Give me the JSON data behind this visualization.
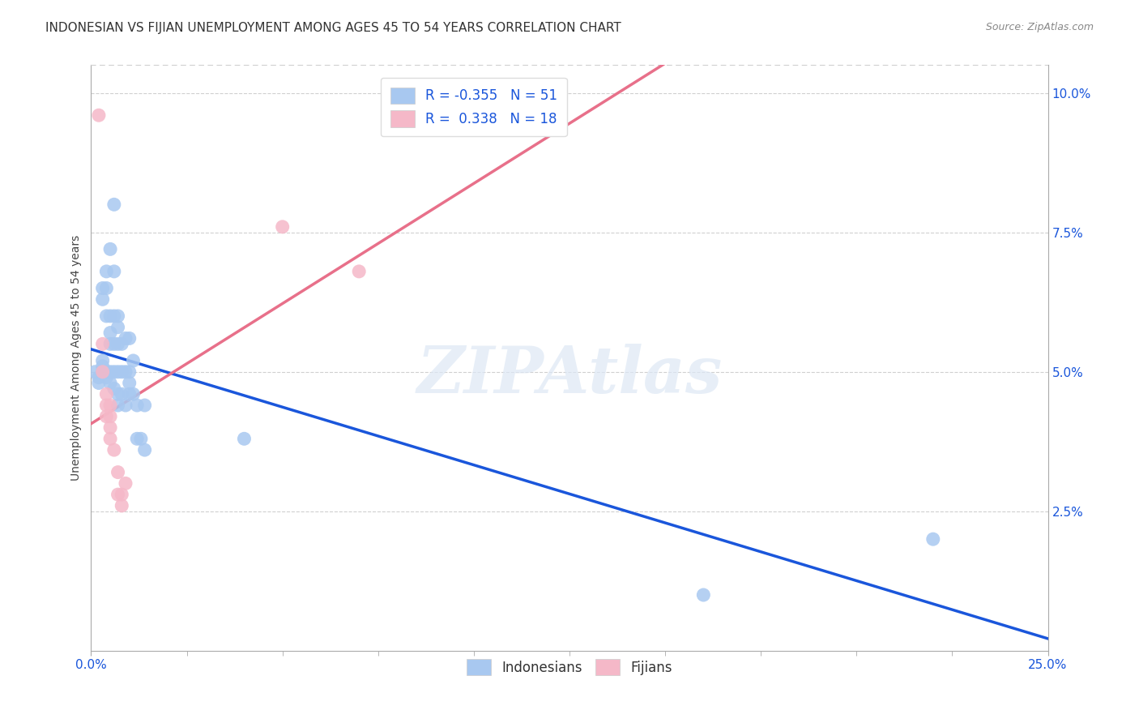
{
  "title": "INDONESIAN VS FIJIAN UNEMPLOYMENT AMONG AGES 45 TO 54 YEARS CORRELATION CHART",
  "source": "Source: ZipAtlas.com",
  "ylabel": "Unemployment Among Ages 45 to 54 years",
  "xlim": [
    0.0,
    0.25
  ],
  "ylim": [
    0.0,
    0.105
  ],
  "ytick_labels": [
    "2.5%",
    "5.0%",
    "7.5%",
    "10.0%"
  ],
  "ytick_vals": [
    0.025,
    0.05,
    0.075,
    0.1
  ],
  "indonesian_color": "#a8c8f0",
  "fijian_color": "#f5b8c8",
  "indonesian_line_color": "#1a56db",
  "fijian_line_color": "#e8708a",
  "dashed_line_color": "#cccccc",
  "r_indonesian": -0.355,
  "n_indonesian": 51,
  "r_fijian": 0.338,
  "n_fijian": 18,
  "indonesian_points": [
    [
      0.001,
      0.05
    ],
    [
      0.002,
      0.049
    ],
    [
      0.002,
      0.048
    ],
    [
      0.003,
      0.052
    ],
    [
      0.003,
      0.051
    ],
    [
      0.003,
      0.05
    ],
    [
      0.003,
      0.065
    ],
    [
      0.003,
      0.063
    ],
    [
      0.004,
      0.05
    ],
    [
      0.004,
      0.049
    ],
    [
      0.004,
      0.068
    ],
    [
      0.004,
      0.065
    ],
    [
      0.004,
      0.06
    ],
    [
      0.005,
      0.072
    ],
    [
      0.005,
      0.06
    ],
    [
      0.005,
      0.057
    ],
    [
      0.005,
      0.055
    ],
    [
      0.005,
      0.05
    ],
    [
      0.005,
      0.048
    ],
    [
      0.006,
      0.08
    ],
    [
      0.006,
      0.068
    ],
    [
      0.006,
      0.06
    ],
    [
      0.006,
      0.055
    ],
    [
      0.006,
      0.05
    ],
    [
      0.006,
      0.047
    ],
    [
      0.007,
      0.06
    ],
    [
      0.007,
      0.058
    ],
    [
      0.007,
      0.055
    ],
    [
      0.007,
      0.05
    ],
    [
      0.007,
      0.046
    ],
    [
      0.007,
      0.044
    ],
    [
      0.008,
      0.055
    ],
    [
      0.008,
      0.05
    ],
    [
      0.008,
      0.046
    ],
    [
      0.009,
      0.056
    ],
    [
      0.009,
      0.05
    ],
    [
      0.009,
      0.044
    ],
    [
      0.01,
      0.056
    ],
    [
      0.01,
      0.05
    ],
    [
      0.01,
      0.048
    ],
    [
      0.01,
      0.046
    ],
    [
      0.011,
      0.052
    ],
    [
      0.011,
      0.046
    ],
    [
      0.012,
      0.044
    ],
    [
      0.012,
      0.038
    ],
    [
      0.013,
      0.038
    ],
    [
      0.014,
      0.044
    ],
    [
      0.014,
      0.036
    ],
    [
      0.04,
      0.038
    ],
    [
      0.16,
      0.01
    ],
    [
      0.22,
      0.02
    ]
  ],
  "fijian_points": [
    [
      0.002,
      0.096
    ],
    [
      0.003,
      0.055
    ],
    [
      0.003,
      0.05
    ],
    [
      0.004,
      0.046
    ],
    [
      0.004,
      0.044
    ],
    [
      0.004,
      0.042
    ],
    [
      0.005,
      0.044
    ],
    [
      0.005,
      0.042
    ],
    [
      0.005,
      0.04
    ],
    [
      0.005,
      0.038
    ],
    [
      0.006,
      0.036
    ],
    [
      0.007,
      0.032
    ],
    [
      0.007,
      0.028
    ],
    [
      0.008,
      0.028
    ],
    [
      0.008,
      0.026
    ],
    [
      0.009,
      0.03
    ],
    [
      0.05,
      0.076
    ],
    [
      0.07,
      0.068
    ]
  ],
  "background_color": "#ffffff",
  "grid_color": "#d0d0d0",
  "title_fontsize": 11,
  "axis_fontsize": 10,
  "tick_fontsize": 11,
  "legend_r_color": "#1a56db",
  "watermark": "ZIPAtlas"
}
